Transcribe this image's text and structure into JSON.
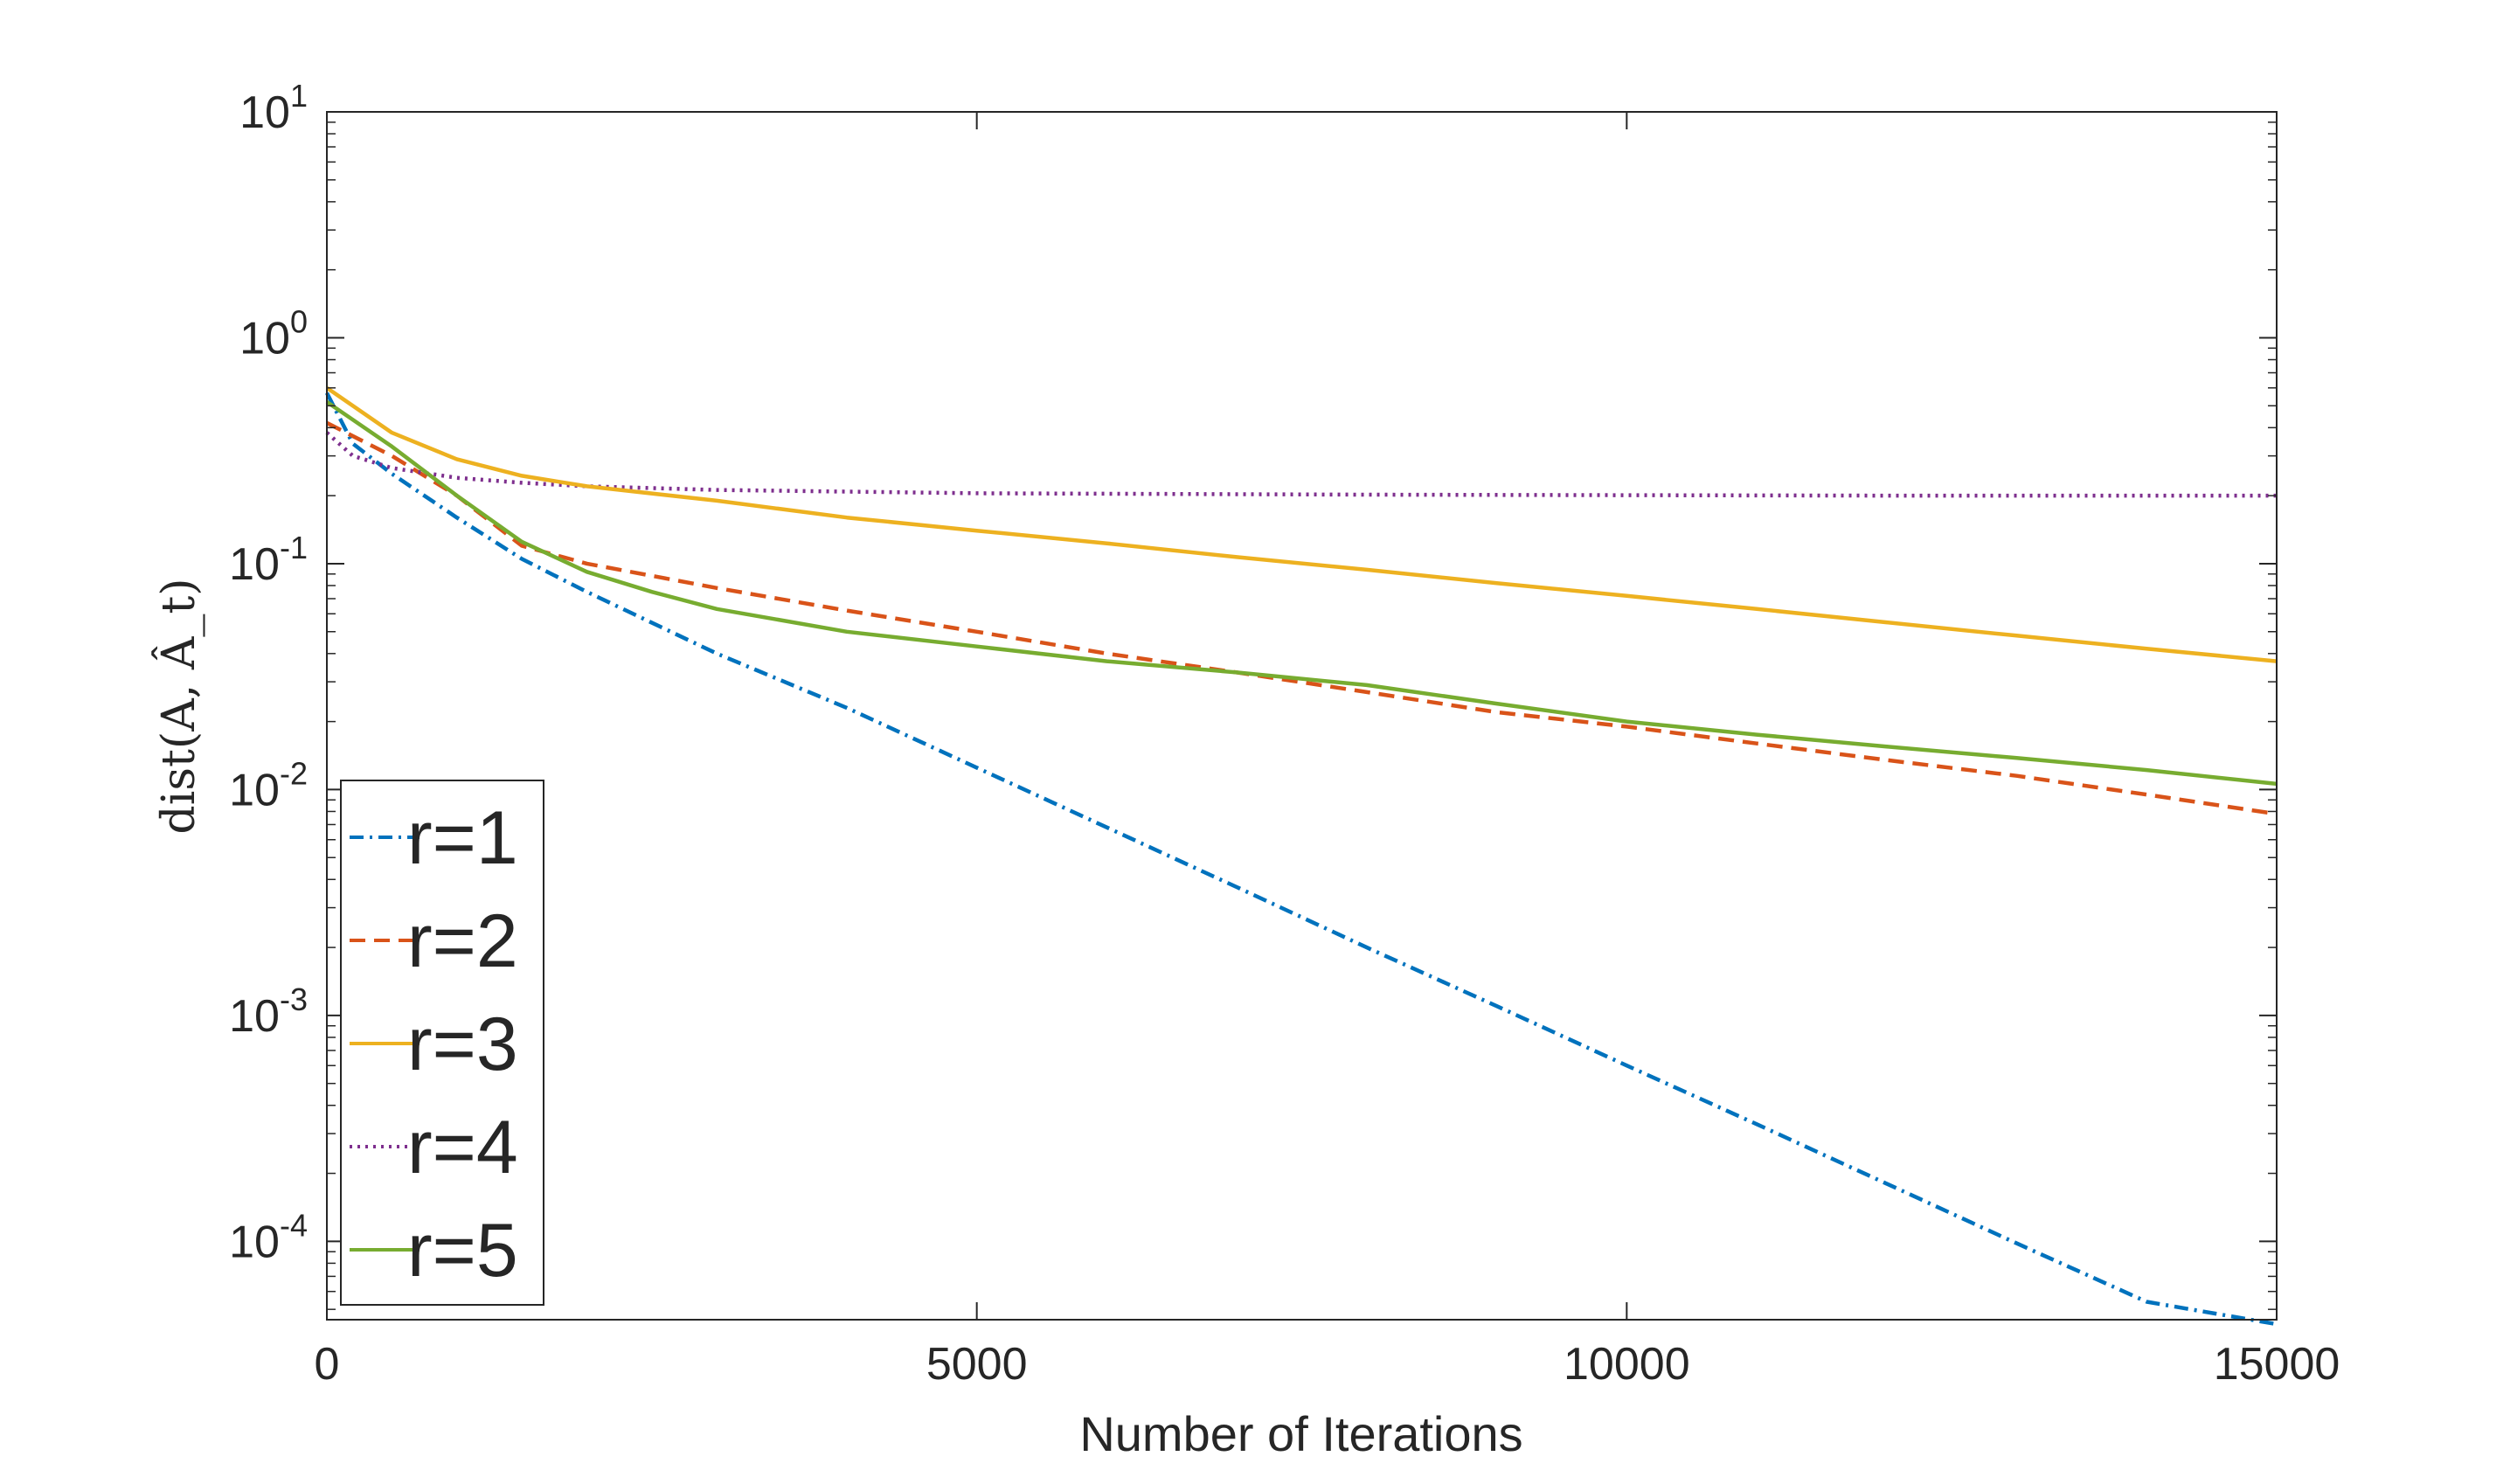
{
  "chart_data": {
    "type": "line",
    "xlabel": "Number of Iterations",
    "ylabel": "dist(A, Â_t)",
    "y_scale": "log",
    "xlim": [
      0,
      15000
    ],
    "ylim": [
      4.5e-05,
      10
    ],
    "x_ticks": [
      0,
      5000,
      10000,
      15000
    ],
    "x_tick_labels": [
      "0",
      "5000",
      "10000",
      "15000"
    ],
    "y_ticks": [
      {
        "value": 10,
        "base": "10",
        "exp": "1"
      },
      {
        "value": 1,
        "base": "10",
        "exp": "0"
      },
      {
        "value": 0.1,
        "base": "10",
        "exp": "-1"
      },
      {
        "value": 0.01,
        "base": "10",
        "exp": "-2"
      },
      {
        "value": 0.001,
        "base": "10",
        "exp": "-3"
      },
      {
        "value": 0.0001,
        "base": "10",
        "exp": "-4"
      }
    ],
    "grid": false,
    "legend_position": "bottom-left",
    "series": [
      {
        "name": "r=1",
        "color": "#0072BD",
        "style": "dashdot",
        "x": [
          0,
          200,
          500,
          1000,
          1500,
          2000,
          3000,
          4000,
          5000,
          6000,
          7000,
          8000,
          9000,
          10000,
          11000,
          12000,
          13000,
          14000,
          15000
        ],
        "y": [
          0.57,
          0.34,
          0.25,
          0.16,
          0.105,
          0.075,
          0.04,
          0.023,
          0.0125,
          0.0068,
          0.0037,
          0.002,
          0.0011,
          0.0006,
          0.00033,
          0.00018,
          9.8e-05,
          5.4e-05,
          4.3e-05
        ]
      },
      {
        "name": "r=2",
        "color": "#D95319",
        "style": "dashed",
        "x": [
          0,
          500,
          1000,
          1500,
          2000,
          3000,
          4000,
          5000,
          6000,
          7000,
          8000,
          9000,
          10000,
          11000,
          12000,
          13000,
          14000,
          15000
        ],
        "y": [
          0.42,
          0.3,
          0.2,
          0.12,
          0.1,
          0.078,
          0.062,
          0.05,
          0.04,
          0.033,
          0.027,
          0.022,
          0.019,
          0.016,
          0.0135,
          0.0115,
          0.0095,
          0.0078
        ]
      },
      {
        "name": "r=3",
        "color": "#EDB120",
        "style": "solid",
        "x": [
          0,
          500,
          1000,
          1500,
          2000,
          3000,
          4000,
          5000,
          6000,
          7000,
          8000,
          9000,
          10000,
          11000,
          12000,
          13000,
          14000,
          15000
        ],
        "y": [
          0.6,
          0.38,
          0.29,
          0.245,
          0.22,
          0.19,
          0.16,
          0.14,
          0.123,
          0.107,
          0.094,
          0.082,
          0.072,
          0.063,
          0.055,
          0.048,
          0.042,
          0.037
        ]
      },
      {
        "name": "r=4",
        "color": "#7E2F8E",
        "style": "dotted",
        "x": [
          0,
          200,
          500,
          1000,
          1500,
          2000,
          3000,
          5000,
          8000,
          10000,
          12000,
          15000
        ],
        "y": [
          0.38,
          0.3,
          0.265,
          0.24,
          0.228,
          0.22,
          0.212,
          0.205,
          0.202,
          0.201,
          0.2,
          0.2
        ]
      },
      {
        "name": "r=5",
        "color": "#77AC30",
        "style": "solid",
        "x": [
          0,
          500,
          1000,
          1500,
          2000,
          2500,
          3000,
          4000,
          5000,
          6000,
          7000,
          8000,
          9000,
          10000,
          11000,
          12000,
          13000,
          14000,
          15000
        ],
        "y": [
          0.52,
          0.33,
          0.2,
          0.125,
          0.092,
          0.075,
          0.063,
          0.05,
          0.043,
          0.037,
          0.033,
          0.029,
          0.024,
          0.02,
          0.0175,
          0.0155,
          0.0138,
          0.0122,
          0.0106
        ]
      }
    ]
  }
}
